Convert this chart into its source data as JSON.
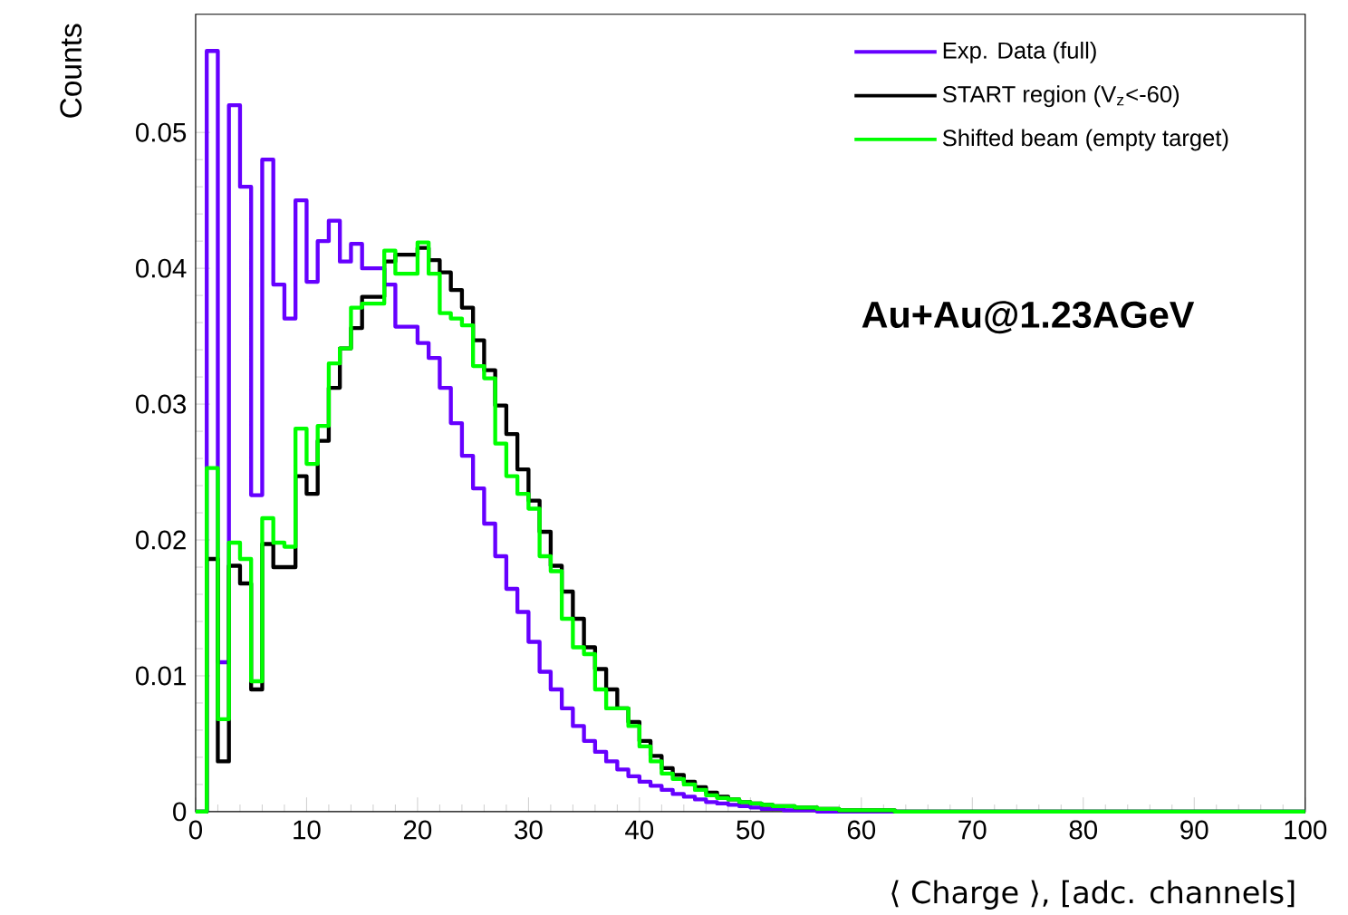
{
  "chart_data": {
    "type": "histogram",
    "xlabel": "⟨ Charge ⟩, [adc. channels]",
    "ylabel": "Counts",
    "annotations": [
      "Au+Au@1.23AGeV"
    ],
    "bins": [
      0,
      1,
      2,
      3,
      4,
      5,
      6,
      7,
      8,
      9,
      10,
      11,
      12,
      13,
      14,
      15,
      16,
      17,
      18,
      19,
      20,
      21,
      22,
      23,
      24,
      25,
      26,
      27,
      28,
      29,
      30,
      31,
      32,
      33,
      34,
      35,
      36,
      37,
      38,
      39,
      40,
      41,
      42,
      43,
      44,
      45,
      46,
      47,
      48,
      49,
      50,
      51,
      52,
      53,
      54,
      55,
      56,
      57,
      58,
      59,
      60,
      61,
      62,
      63,
      64,
      65,
      66,
      67,
      68,
      69,
      70,
      71,
      72,
      73,
      74,
      75,
      76,
      77,
      78,
      79,
      80,
      81,
      82,
      83,
      84,
      85,
      86,
      87,
      88,
      89,
      90,
      91,
      92,
      93,
      94,
      95,
      96,
      97,
      98,
      99,
      100
    ],
    "series": [
      {
        "name": "Exp. Data (full)",
        "color": "#6600ff",
        "values": [
          0,
          0.056,
          0.011,
          0.052,
          0.046,
          0.0233,
          0.048,
          0.0388,
          0.0363,
          0.045,
          0.039,
          0.042,
          0.0435,
          0.0405,
          0.0418,
          0.04,
          0.04,
          0.0388,
          0.0357,
          0.0357,
          0.0345,
          0.0334,
          0.0312,
          0.0286,
          0.0262,
          0.0238,
          0.0212,
          0.0188,
          0.0164,
          0.0147,
          0.0125,
          0.0103,
          0.009,
          0.0076,
          0.0063,
          0.0052,
          0.0044,
          0.0037,
          0.0031,
          0.0026,
          0.0022,
          0.0019,
          0.0016,
          0.0013,
          0.0011,
          0.0009,
          0.0007,
          0.0006,
          0.0005,
          0.0004,
          0.0003,
          0.0002,
          0.0002,
          0.0001,
          0.0001,
          0.0001,
          0,
          0,
          0,
          0,
          0,
          0,
          0,
          0,
          0,
          0,
          0,
          0,
          0,
          0,
          0,
          0,
          0,
          0,
          0,
          0,
          0,
          0,
          0,
          0,
          0,
          0,
          0,
          0,
          0,
          0,
          0,
          0,
          0,
          0,
          0,
          0,
          0,
          0,
          0,
          0,
          0,
          0,
          0,
          0
        ]
      },
      {
        "name": "START region (V$_{z}$<-60)",
        "color": "#000000",
        "values": [
          0,
          0.0186,
          0.0037,
          0.0181,
          0.0168,
          0.009,
          0.0197,
          0.018,
          0.018,
          0.0247,
          0.0234,
          0.0273,
          0.0312,
          0.0341,
          0.0356,
          0.0379,
          0.0379,
          0.0405,
          0.041,
          0.041,
          0.0415,
          0.0406,
          0.0397,
          0.0384,
          0.0371,
          0.0347,
          0.0325,
          0.0299,
          0.0278,
          0.0252,
          0.0229,
          0.0206,
          0.0181,
          0.0162,
          0.0142,
          0.0121,
          0.0105,
          0.009,
          0.0076,
          0.0066,
          0.0052,
          0.0041,
          0.0032,
          0.0027,
          0.0022,
          0.0018,
          0.0014,
          0.0011,
          0.0009,
          0.0007,
          0.0006,
          0.0005,
          0.0004,
          0.0004,
          0.0003,
          0.0003,
          0.0002,
          0.0002,
          0.0001,
          0.0001,
          0.0001,
          0.0001,
          0.0001,
          0,
          0,
          0,
          0,
          0,
          0,
          0,
          0,
          0,
          0,
          0,
          0,
          0,
          0,
          0,
          0,
          0,
          0,
          0,
          0,
          0,
          0,
          0,
          0,
          0,
          0,
          0,
          0,
          0,
          0,
          0,
          0,
          0,
          0,
          0,
          0,
          0
        ]
      },
      {
        "name": "Shifted beam (empty target)",
        "color": "#00ff00",
        "values": [
          0,
          0.0253,
          0.0068,
          0.0198,
          0.0186,
          0.0096,
          0.0216,
          0.0198,
          0.0195,
          0.0282,
          0.0256,
          0.0284,
          0.033,
          0.0341,
          0.0371,
          0.0374,
          0.0374,
          0.0413,
          0.0396,
          0.0396,
          0.0419,
          0.0396,
          0.0367,
          0.0363,
          0.0358,
          0.0328,
          0.0319,
          0.0271,
          0.0247,
          0.0234,
          0.0223,
          0.0188,
          0.0177,
          0.0142,
          0.0121,
          0.0116,
          0.009,
          0.0076,
          0.0076,
          0.0063,
          0.0048,
          0.0037,
          0.0028,
          0.0024,
          0.002,
          0.0016,
          0.0012,
          0.001,
          0.0009,
          0.0007,
          0.0006,
          0.0005,
          0.0004,
          0.0004,
          0.0003,
          0.0003,
          0.0002,
          0.0002,
          0.0001,
          0.0001,
          0.0001,
          0.0001,
          0.0001,
          0,
          0,
          0,
          0,
          0,
          0,
          0,
          0,
          0,
          0,
          0,
          0,
          0,
          0,
          0,
          0,
          0,
          0,
          0,
          0,
          0,
          0,
          0,
          0,
          0,
          0,
          0,
          0,
          0,
          0,
          0,
          0,
          0,
          0,
          0,
          0,
          0
        ]
      }
    ],
    "xlim": [
      0,
      100
    ],
    "ylim": [
      0,
      0.0587
    ],
    "xticks": [
      0,
      10,
      20,
      30,
      40,
      50,
      60,
      70,
      80,
      90,
      100
    ],
    "yticks": [
      0,
      0.01,
      0.02,
      0.03,
      0.04,
      0.05
    ],
    "legend": "top right"
  }
}
